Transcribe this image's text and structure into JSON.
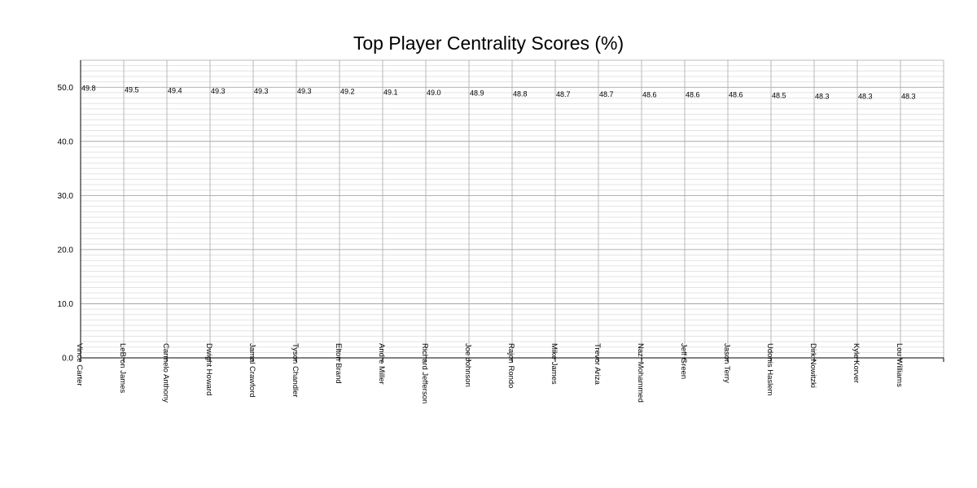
{
  "chart_data": {
    "type": "line",
    "title": "Top Player Centrality Scores (%)",
    "xlabel": "",
    "ylabel": "",
    "ylim": [
      0,
      55
    ],
    "yticks": [
      "0.0",
      "10.0",
      "20.0",
      "30.0",
      "40.0",
      "50.0"
    ],
    "grid": true,
    "categories": [
      "Vince Carter",
      "LeBron James",
      "Carmelo Anthony",
      "Dwight Howard",
      "Jamal Crawford",
      "Tyson Chandler",
      "Elton Brand",
      "Andre Miller",
      "Richard Jefferson",
      "Joe Johnson",
      "Rajon Rondo",
      "Mike James",
      "Trevor Ariza",
      "Nazr Mohammed",
      "Jeff Green",
      "Jason Terry",
      "Udonis Haslem",
      "Dirk Nowitzki",
      "Kyle Korver",
      "Lou Williams"
    ],
    "values": [
      49.8,
      49.5,
      49.4,
      49.3,
      49.3,
      49.3,
      49.2,
      49.1,
      49.0,
      48.9,
      48.8,
      48.7,
      48.7,
      48.6,
      48.6,
      48.6,
      48.5,
      48.3,
      48.3,
      48.3
    ],
    "value_labels": [
      "49.8",
      "49.5",
      "49.4",
      "49.3",
      "49.3",
      "49.3",
      "49.2",
      "49.1",
      "49.0",
      "48.9",
      "48.8",
      "48.7",
      "48.7",
      "48.6",
      "48.6",
      "48.6",
      "48.5",
      "48.3",
      "48.3",
      "48.3"
    ]
  }
}
